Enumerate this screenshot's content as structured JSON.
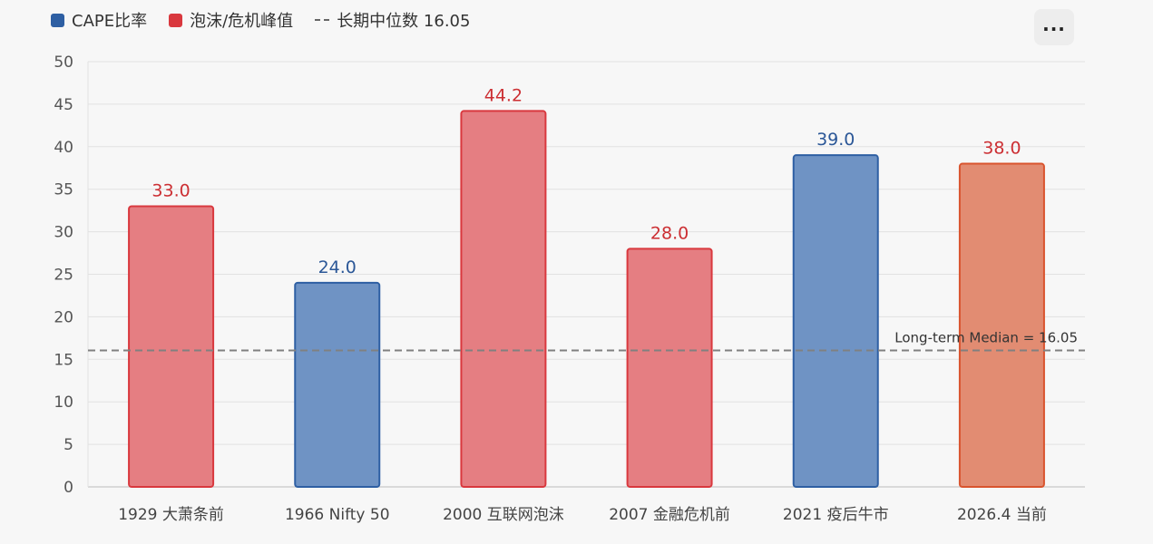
{
  "legend": {
    "items": [
      {
        "label": "CAPE比率",
        "color": "#2e5fa3",
        "kind": "swatch"
      },
      {
        "label": "泡沫/危机峰值",
        "color": "#d9383e",
        "kind": "swatch"
      },
      {
        "label": "长期中位数 16.05",
        "color": "#666666",
        "kind": "dash"
      }
    ]
  },
  "toolbar": {
    "more_label": "..."
  },
  "chart_data": {
    "type": "bar",
    "categories": [
      "1929 大萧条前",
      "1966 Nifty 50",
      "2000 互联网泡沫",
      "2007 金融危机前",
      "2021 疫后牛市",
      "2026.4 当前"
    ],
    "values": [
      33.0,
      24.0,
      44.2,
      28.0,
      39.0,
      38.0
    ],
    "value_labels": [
      "33.0",
      "24.0",
      "44.2",
      "28.0",
      "39.0",
      "38.0"
    ],
    "bar_fill_colors": [
      "#e57e82",
      "#6f93c4",
      "#e57e82",
      "#e57e82",
      "#6f93c4",
      "#e28c72"
    ],
    "bar_edge_colors": [
      "#d9383e",
      "#2e5fa3",
      "#d9383e",
      "#d9383e",
      "#2e5fa3",
      "#d9542e"
    ],
    "label_colors": [
      "#cc2f33",
      "#2b5797",
      "#cc2f33",
      "#cc2f33",
      "#2b5797",
      "#cc2f33"
    ],
    "ylim": [
      0,
      50
    ],
    "yticks": [
      0,
      5,
      10,
      15,
      20,
      25,
      30,
      35,
      40,
      45,
      50
    ],
    "grid": true,
    "reference_line": {
      "value": 16.05,
      "label": "Long-term Median = 16.05",
      "color": "#808080"
    },
    "xlabel": "",
    "ylabel": "",
    "legend_position": "top-left"
  }
}
